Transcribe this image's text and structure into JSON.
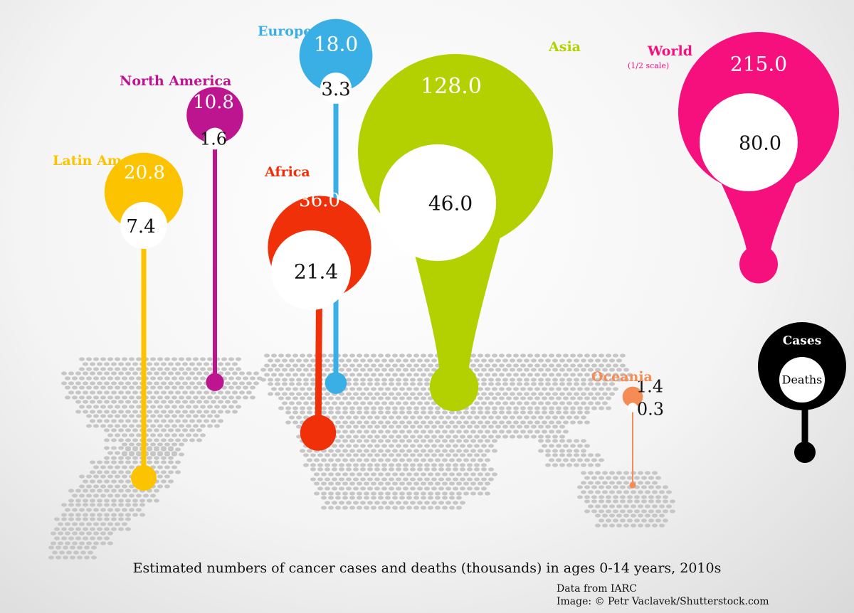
{
  "chart_data": {
    "type": "bubble",
    "title": "Estimated numbers of cancer cases and deaths (thousands) in ages 0-14 years, 2010s",
    "source_lines": [
      "Data from IARC",
      "Image: © Petr Vaclavek/Shutterstock.com"
    ],
    "series": [
      {
        "name": "Asia",
        "cases": 128.0,
        "deaths": 46.0,
        "color": "#b3d100"
      },
      {
        "name": "Europe",
        "cases": 18.0,
        "deaths": 3.3,
        "color": "#3aafe6"
      },
      {
        "name": "North America",
        "cases": 10.8,
        "deaths": 1.6,
        "color": "#bd1590"
      },
      {
        "name": "Latin America",
        "cases": 20.8,
        "deaths": 7.4,
        "color": "#fcc400"
      },
      {
        "name": "Africa",
        "cases": 36.0,
        "deaths": 21.4,
        "color": "#f03008"
      },
      {
        "name": "Oceania",
        "cases": 1.4,
        "deaths": 0.3,
        "color": "#f58c55"
      },
      {
        "name": "World",
        "note": "(1/2 scale)",
        "cases": 215.0,
        "deaths": 80.0,
        "color": "#f5107e"
      }
    ],
    "legend": {
      "outer": "Cases",
      "inner": "Deaths",
      "color": "#000000",
      "placement": "right"
    }
  }
}
